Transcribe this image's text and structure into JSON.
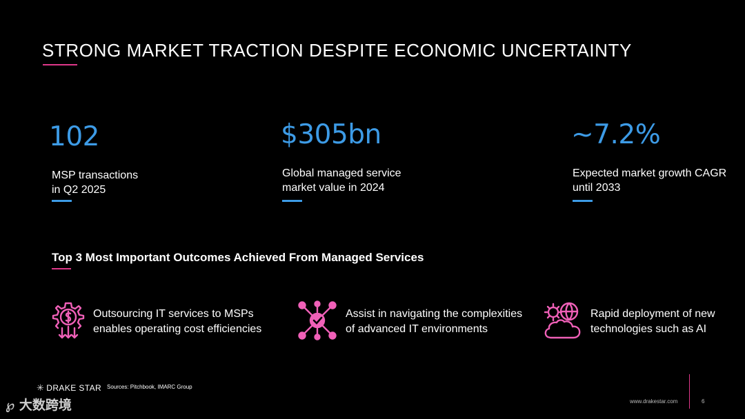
{
  "title": "STRONG MARKET TRACTION DESPITE ECONOMIC UNCERTAINTY",
  "stats": [
    {
      "value": "102",
      "label_line1": "MSP transactions",
      "label_line2": "in Q2 2025"
    },
    {
      "value": "$305bn",
      "label_line1": "Global managed service",
      "label_line2": "market value in 2024"
    },
    {
      "value": "~7.2%",
      "label_line1": "Expected market growth CAGR",
      "label_line2": "until 2033"
    }
  ],
  "section_title": "Top 3 Most Important Outcomes Achieved From Managed Services",
  "outcomes": [
    {
      "icon": "gear-dollar-icon",
      "line1": "Outsourcing IT services to MSPs",
      "line2": "enables operating cost efficiencies"
    },
    {
      "icon": "network-gear-icon",
      "line1": "Assist in navigating the complexities",
      "line2": "of advanced IT environments"
    },
    {
      "icon": "cloud-gear-icon",
      "line1": "Rapid deployment of new",
      "line2": "technologies such as AI"
    }
  ],
  "footer": {
    "logo_text": "DRAKE STAR",
    "sources": "Sources: Pitchbook, IMARC Group",
    "website": "www.drakestar.com",
    "page_number": "6",
    "watermark": "大数跨境"
  },
  "colors": {
    "accent_blue": "#3d9be6",
    "accent_pink": "#e0388a",
    "icon_pink": "#f060b8",
    "background": "#000000"
  }
}
